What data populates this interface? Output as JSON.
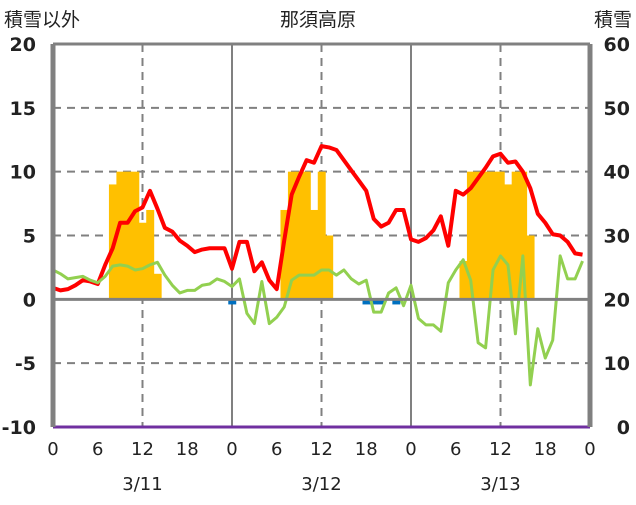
{
  "chart_data": {
    "type": "line",
    "title": "那須高原",
    "ylabel_left": "積雪以外",
    "ylabel_right": "積雪",
    "ylim_left": [
      -10,
      20
    ],
    "ylim_right": [
      0,
      60
    ],
    "yticks_left": [
      "20",
      "15",
      "10",
      "5",
      "0",
      "-5",
      "-10"
    ],
    "yticks_right": [
      "60",
      "50",
      "40",
      "30",
      "20",
      "10",
      "0"
    ],
    "xlim_hours": [
      0,
      72
    ],
    "xtick_labels": [
      "0",
      "6",
      "12",
      "18",
      "0",
      "6",
      "12",
      "18",
      "0",
      "6",
      "12",
      "18",
      "0"
    ],
    "day_labels": [
      "3/11",
      "3/12",
      "3/13"
    ],
    "colors": {
      "temperature": "#FF0000",
      "green_series": "#92D050",
      "snow": "#FFC000",
      "blue_series": "#0070C0",
      "purple_series": "#7030A0",
      "axis": "#808080"
    },
    "series": [
      {
        "name": "red",
        "type": "line",
        "axis": "left",
        "color": "#FF0000",
        "values": [
          0.9,
          0.7,
          0.8,
          1.1,
          1.5,
          1.4,
          1.2,
          2.7,
          4.0,
          6.0,
          6.0,
          6.9,
          7.2,
          8.5,
          7.1,
          5.6,
          5.3,
          4.6,
          4.2,
          3.7,
          3.9,
          4.0,
          4.0,
          4.0,
          2.4,
          4.5,
          4.5,
          2.2,
          2.9,
          1.5,
          0.8,
          4.6,
          8.2,
          9.6,
          10.9,
          10.7,
          12.0,
          11.9,
          11.7,
          10.9,
          10.1,
          9.3,
          8.5,
          6.3,
          5.7,
          6.0,
          7.0,
          7.0,
          4.7,
          4.5,
          4.8,
          5.4,
          6.5,
          4.2,
          8.5,
          8.2,
          8.7,
          9.5,
          10.3,
          11.2,
          11.4,
          10.7,
          10.8,
          10.0,
          8.7,
          6.7,
          6.0,
          5.1,
          5.0,
          4.5,
          3.6,
          3.5
        ]
      },
      {
        "name": "green",
        "type": "line",
        "axis": "left",
        "color": "#92D050",
        "values": [
          2.3,
          2.0,
          1.6,
          1.7,
          1.8,
          1.5,
          1.3,
          1.8,
          2.6,
          2.7,
          2.6,
          2.3,
          2.4,
          2.7,
          2.9,
          1.9,
          1.1,
          0.5,
          0.7,
          0.7,
          1.1,
          1.2,
          1.6,
          1.4,
          1.0,
          1.6,
          -1.1,
          -1.9,
          1.4,
          -1.9,
          -1.4,
          -0.6,
          1.5,
          1.9,
          1.9,
          1.9,
          2.3,
          2.3,
          1.9,
          2.3,
          1.6,
          1.2,
          1.5,
          -1.0,
          -1.0,
          0.5,
          0.9,
          -0.5,
          1.1,
          -1.5,
          -2.0,
          -2.0,
          -2.5,
          1.3,
          2.3,
          3.1,
          1.5,
          -3.4,
          -3.8,
          2.3,
          3.4,
          2.7,
          -2.7,
          3.4,
          -6.7,
          -2.3,
          -4.6,
          -3.2,
          3.4,
          1.6,
          1.6,
          3.0
        ]
      },
      {
        "name": "snow",
        "type": "bar",
        "axis": "right",
        "color": "#FFC000",
        "points": [
          [
            8,
            38
          ],
          [
            9,
            40
          ],
          [
            10,
            40
          ],
          [
            11,
            40
          ],
          [
            12,
            32
          ],
          [
            13,
            34
          ],
          [
            14,
            24
          ],
          [
            31,
            34
          ],
          [
            32,
            40
          ],
          [
            33,
            40
          ],
          [
            34,
            40
          ],
          [
            35,
            34
          ],
          [
            36,
            40
          ],
          [
            37,
            30
          ],
          [
            55,
            26
          ],
          [
            56,
            40
          ],
          [
            57,
            40
          ],
          [
            58,
            40
          ],
          [
            59,
            40
          ],
          [
            60,
            40
          ],
          [
            61,
            38
          ],
          [
            62,
            40
          ],
          [
            63,
            40
          ],
          [
            64,
            30
          ]
        ]
      },
      {
        "name": "blue",
        "type": "bar",
        "axis": "left",
        "color": "#0070C0",
        "points": [
          [
            24,
            -0.4
          ],
          [
            42,
            -0.4
          ],
          [
            43,
            -0.4
          ],
          [
            44,
            -0.4
          ],
          [
            46,
            -0.4
          ]
        ]
      },
      {
        "name": "purple",
        "type": "line",
        "axis": "left",
        "color": "#7030A0",
        "constant": -10
      }
    ]
  }
}
